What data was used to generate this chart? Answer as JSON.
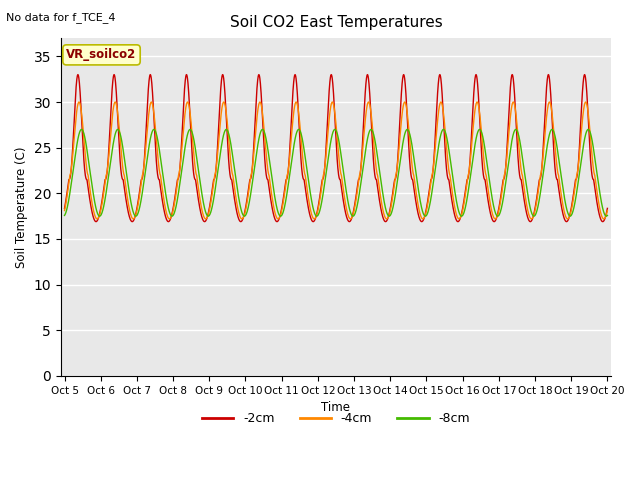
{
  "title": "Soil CO2 East Temperatures",
  "ylabel": "Soil Temperature (C)",
  "xlabel": "Time",
  "note": "No data for f_TCE_4",
  "legend_label": "VR_soilco2",
  "ylim": [
    0,
    37
  ],
  "yticks": [
    0,
    5,
    10,
    15,
    20,
    25,
    30,
    35
  ],
  "num_days": 15,
  "colors": {
    "2cm": "#CC0000",
    "4cm": "#FF8800",
    "8cm": "#44BB00"
  },
  "series_labels": [
    "-2cm",
    "-4cm",
    "-8cm"
  ],
  "bg_color": "#FFFFFF",
  "plot_bg_color": "#E8E8E8",
  "grid_color": "#FFFFFF",
  "x_date_labels": [
    "Oct 5",
    "Oct 6",
    "Oct 7",
    "Oct 8",
    "Oct 9",
    "Oct 10",
    "Oct 11",
    "Oct 12",
    "Oct 13",
    "Oct 14",
    "Oct 15",
    "Oct 16",
    "Oct 17",
    "Oct 18",
    "Oct 19",
    "Oct 20"
  ]
}
